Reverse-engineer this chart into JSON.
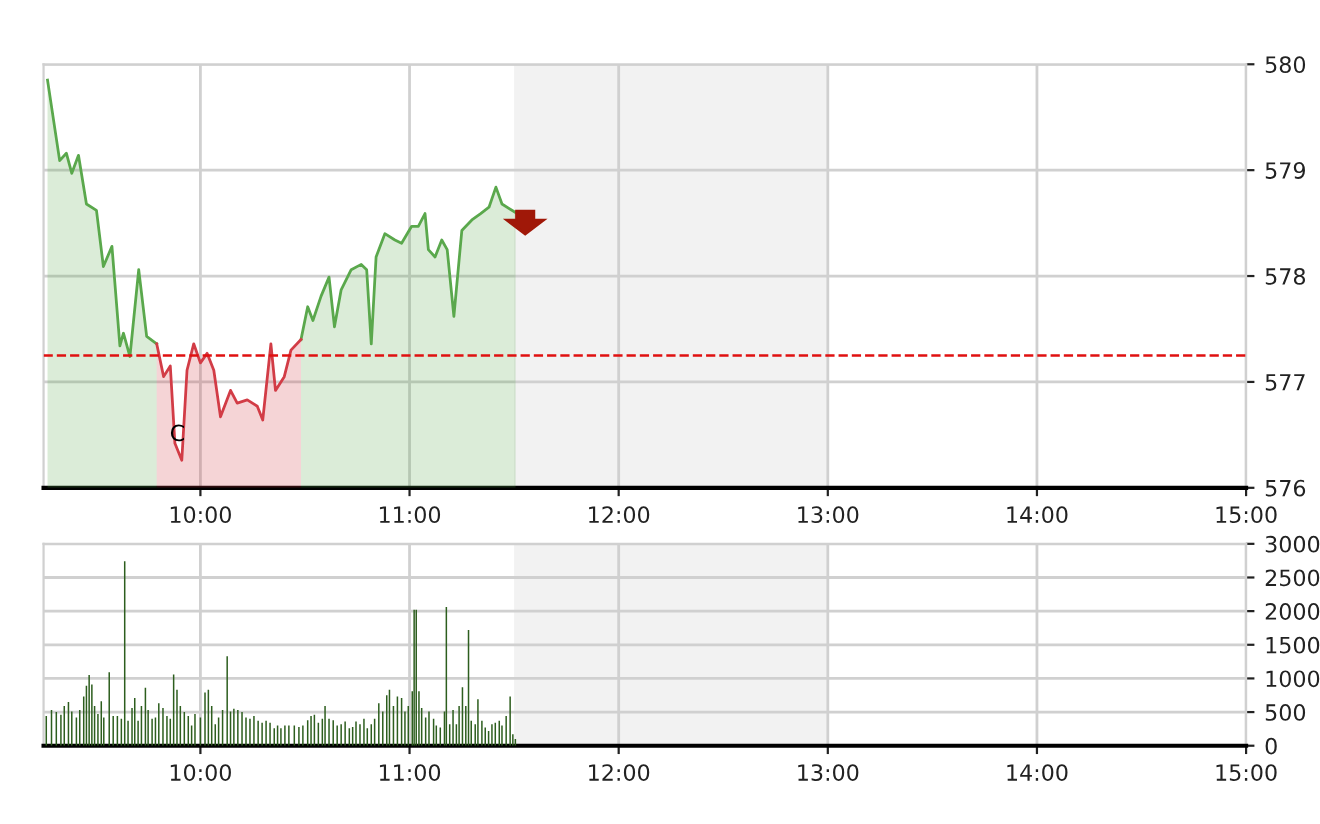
{
  "chart_data": [
    {
      "type": "area",
      "x": [
        9.269,
        9.327,
        9.359,
        9.385,
        9.417,
        9.455,
        9.503,
        9.536,
        9.577,
        9.615,
        9.632,
        9.663,
        9.705,
        9.743,
        9.791,
        9.824,
        9.856,
        9.878,
        9.911,
        9.936,
        9.968,
        10.0,
        10.032,
        10.064,
        10.096,
        10.144,
        10.176,
        10.224,
        10.272,
        10.298,
        10.337,
        10.359,
        10.401,
        10.433,
        10.481,
        10.513,
        10.538,
        10.577,
        10.615,
        10.641,
        10.673,
        10.721,
        10.769,
        10.795,
        10.817,
        10.84,
        10.882,
        10.93,
        10.962,
        11.01,
        11.042,
        11.074,
        11.09,
        11.122,
        11.154,
        11.18,
        11.212,
        11.25,
        11.298,
        11.34,
        11.38,
        11.413,
        11.442,
        11.507
      ],
      "series": [
        {
          "color": "#5aa84c",
          "values": [
            579.85,
            579.09,
            579.16,
            578.97,
            579.14,
            578.68,
            578.62,
            578.09,
            578.28,
            577.34,
            577.46,
            577.24,
            578.06,
            577.43,
            577.36,
            null,
            null,
            null,
            null,
            null,
            null,
            null,
            null,
            null,
            null,
            null,
            null,
            null,
            null,
            null,
            null,
            null,
            null,
            null,
            577.4,
            577.71,
            577.58,
            577.81,
            577.99,
            577.52,
            577.87,
            578.06,
            578.11,
            578.06,
            577.36,
            578.18,
            578.4,
            578.34,
            578.31,
            578.47,
            578.47,
            578.59,
            578.25,
            578.18,
            578.34,
            578.25,
            577.62,
            578.43,
            578.53,
            578.59,
            578.65,
            578.84,
            578.68,
            578.6
          ]
        },
        {
          "color": "#d23c46",
          "values": [
            null,
            null,
            null,
            null,
            null,
            null,
            null,
            null,
            null,
            null,
            null,
            null,
            null,
            null,
            577.36,
            577.05,
            577.15,
            576.42,
            576.26,
            577.11,
            577.36,
            577.18,
            577.27,
            577.11,
            576.67,
            576.92,
            576.8,
            576.83,
            576.77,
            576.64,
            577.36,
            576.92,
            577.05,
            577.3,
            577.4,
            null,
            null,
            null,
            null,
            null,
            null,
            null,
            null,
            null,
            null,
            null,
            null,
            null,
            null,
            null,
            null,
            null,
            null,
            null,
            null,
            null,
            null,
            null,
            null,
            null,
            null,
            null,
            null,
            null
          ]
        }
      ],
      "ref_lines": [
        {
          "axis": "y",
          "value": 577.25,
          "color": "#e01010",
          "line_style": "dashed"
        }
      ],
      "bands": [
        {
          "axis": "x",
          "from": 11.5,
          "to": 13,
          "color": "#f2f2f2"
        }
      ],
      "annotations": [
        {
          "text": "C",
          "x": 9.89,
          "y": 576.5
        }
      ],
      "xlim": [
        9.25,
        15
      ],
      "xticks": [
        {
          "value": 10,
          "label": "10:00"
        },
        {
          "value": 11,
          "label": "11:00"
        },
        {
          "value": 12,
          "label": "12:00"
        },
        {
          "value": 13,
          "label": "13:00"
        },
        {
          "value": 14,
          "label": "14:00"
        },
        {
          "value": 15,
          "label": "15:00"
        }
      ],
      "ylim": [
        576,
        580
      ],
      "yticks": [
        576,
        577,
        578,
        579,
        580
      ],
      "grid": true
    },
    {
      "type": "bar",
      "x": [
        9.263,
        9.288,
        9.311,
        9.333,
        9.349,
        9.369,
        9.385,
        9.407,
        9.423,
        9.442,
        9.455,
        9.468,
        9.481,
        9.494,
        9.51,
        9.526,
        9.538,
        9.564,
        9.583,
        9.603,
        9.622,
        9.638,
        9.654,
        9.673,
        9.686,
        9.702,
        9.718,
        9.737,
        9.75,
        9.769,
        9.785,
        9.801,
        9.821,
        9.84,
        9.856,
        9.872,
        9.888,
        9.904,
        9.923,
        9.942,
        9.958,
        9.974,
        10.0,
        10.022,
        10.038,
        10.054,
        10.071,
        10.087,
        10.106,
        10.128,
        10.144,
        10.16,
        10.179,
        10.199,
        10.218,
        10.237,
        10.256,
        10.276,
        10.295,
        10.314,
        10.333,
        10.353,
        10.369,
        10.385,
        10.404,
        10.423,
        10.449,
        10.471,
        10.49,
        10.513,
        10.529,
        10.545,
        10.564,
        10.583,
        10.596,
        10.615,
        10.635,
        10.654,
        10.673,
        10.692,
        10.712,
        10.728,
        10.744,
        10.763,
        10.782,
        10.798,
        10.817,
        10.833,
        10.853,
        10.872,
        10.891,
        10.904,
        10.923,
        10.942,
        10.962,
        10.978,
        10.994,
        11.013,
        11.022,
        11.032,
        11.045,
        11.058,
        11.077,
        11.093,
        11.115,
        11.128,
        11.147,
        11.167,
        11.176,
        11.192,
        11.208,
        11.224,
        11.237,
        11.253,
        11.269,
        11.282,
        11.295,
        11.314,
        11.327,
        11.346,
        11.362,
        11.378,
        11.394,
        11.41,
        11.429,
        11.442,
        11.462,
        11.481,
        11.494,
        11.506
      ],
      "values": [
        440,
        530,
        500,
        460,
        590,
        650,
        510,
        420,
        530,
        730,
        890,
        1050,
        910,
        590,
        470,
        660,
        420,
        1090,
        440,
        440,
        400,
        2740,
        370,
        560,
        710,
        370,
        590,
        860,
        530,
        400,
        420,
        630,
        560,
        440,
        400,
        1060,
        830,
        590,
        500,
        440,
        300,
        470,
        420,
        790,
        830,
        590,
        320,
        420,
        530,
        1330,
        510,
        550,
        530,
        500,
        420,
        400,
        440,
        370,
        340,
        370,
        340,
        260,
        300,
        260,
        300,
        300,
        300,
        280,
        300,
        380,
        440,
        460,
        340,
        400,
        590,
        400,
        380,
        300,
        320,
        360,
        260,
        280,
        360,
        320,
        400,
        260,
        320,
        400,
        630,
        510,
        750,
        830,
        590,
        730,
        710,
        510,
        590,
        810,
        2020,
        2020,
        810,
        560,
        420,
        510,
        400,
        300,
        270,
        510,
        2060,
        320,
        530,
        320,
        590,
        870,
        590,
        1720,
        370,
        320,
        690,
        370,
        270,
        220,
        320,
        340,
        370,
        300,
        440,
        730,
        170,
        100
      ],
      "color": "#2d5e1e",
      "bands": [
        {
          "axis": "x",
          "from": 11.5,
          "to": 13,
          "color": "#f2f2f2"
        }
      ],
      "xlim": [
        9.25,
        15
      ],
      "xticks": [
        {
          "value": 10,
          "label": "10:00"
        },
        {
          "value": 11,
          "label": "11:00"
        },
        {
          "value": 12,
          "label": "12:00"
        },
        {
          "value": 13,
          "label": "13:00"
        },
        {
          "value": 14,
          "label": "14:00"
        },
        {
          "value": 15,
          "label": "15:00"
        }
      ],
      "ylim": [
        0,
        3000
      ],
      "yticks": [
        0,
        500,
        1000,
        1500,
        2000,
        2500,
        3000
      ],
      "grid": true
    }
  ]
}
